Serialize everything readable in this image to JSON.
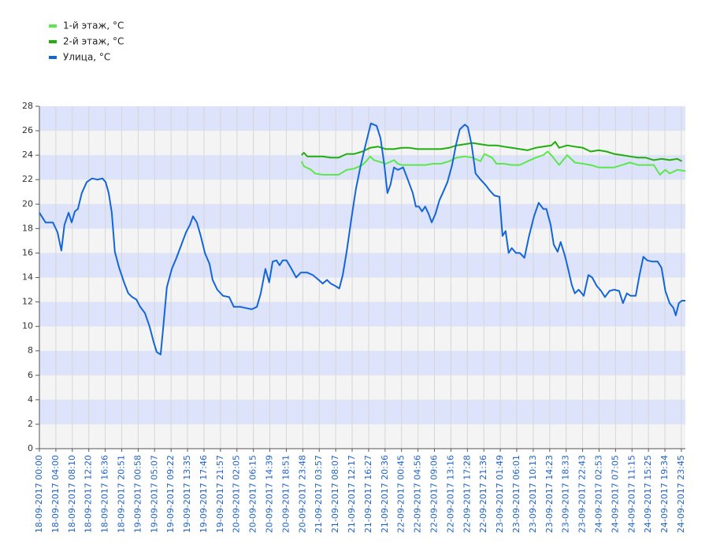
{
  "chart_data": {
    "type": "line",
    "legend": "top-left",
    "grid": true,
    "band_colors": [
      "#f4f4f4",
      "#dce3fa"
    ],
    "xlim": [
      0,
      167.8
    ],
    "ylim": [
      0,
      28
    ],
    "yticks": [
      0,
      2,
      4,
      6,
      8,
      10,
      12,
      14,
      16,
      18,
      20,
      22,
      24,
      26,
      28
    ],
    "xticks": [
      {
        "value": 0,
        "label": "18-09-2017 00:00"
      },
      {
        "value": 4.28,
        "label": "18-09-2017 04:00"
      },
      {
        "value": 8.55,
        "label": "18-09-2017 08:10"
      },
      {
        "value": 12.83,
        "label": "18-09-2017 12:20"
      },
      {
        "value": 17.1,
        "label": "18-09-2017 16:36"
      },
      {
        "value": 21.38,
        "label": "18-09-2017 20:51"
      },
      {
        "value": 25.66,
        "label": "19-09-2017 00:58"
      },
      {
        "value": 29.93,
        "label": "19-09-2017 05:07"
      },
      {
        "value": 34.21,
        "label": "19-09-2017 09:22"
      },
      {
        "value": 38.48,
        "label": "19-09-2017 13:35"
      },
      {
        "value": 42.76,
        "label": "19-09-2017 17:46"
      },
      {
        "value": 47.04,
        "label": "19-09-2017 21:57"
      },
      {
        "value": 51.31,
        "label": "20-09-2017 02:05"
      },
      {
        "value": 55.59,
        "label": "20-09-2017 06:15"
      },
      {
        "value": 59.86,
        "label": "20-09-2017 14:39"
      },
      {
        "value": 64.14,
        "label": "20-09-2017 18:51"
      },
      {
        "value": 68.42,
        "label": "20-09-2017 23:48"
      },
      {
        "value": 72.69,
        "label": "21-09-2017 03:57"
      },
      {
        "value": 76.97,
        "label": "21-09-2017 08:07"
      },
      {
        "value": 81.24,
        "label": "21-09-2017 12:17"
      },
      {
        "value": 85.52,
        "label": "21-09-2017 16:27"
      },
      {
        "value": 89.8,
        "label": "21-09-2017 20:36"
      },
      {
        "value": 94.07,
        "label": "22-09-2017 00:45"
      },
      {
        "value": 98.35,
        "label": "22-09-2017 04:56"
      },
      {
        "value": 102.62,
        "label": "22-09-2017 09:06"
      },
      {
        "value": 106.9,
        "label": "22-09-2017 13:16"
      },
      {
        "value": 111.18,
        "label": "22-09-2017 17:28"
      },
      {
        "value": 115.45,
        "label": "22-09-2017 21:36"
      },
      {
        "value": 119.73,
        "label": "23-09-2017 01:49"
      },
      {
        "value": 124.0,
        "label": "23-09-2017 06:01"
      },
      {
        "value": 128.28,
        "label": "23-09-2017 10:13"
      },
      {
        "value": 132.56,
        "label": "23-09-2017 14:23"
      },
      {
        "value": 136.83,
        "label": "23-09-2017 18:33"
      },
      {
        "value": 141.11,
        "label": "23-09-2017 22:43"
      },
      {
        "value": 145.38,
        "label": "24-09-2017 02:53"
      },
      {
        "value": 149.66,
        "label": "24-09-2017 07:05"
      },
      {
        "value": 153.94,
        "label": "24-09-2017 11:15"
      },
      {
        "value": 158.21,
        "label": "24-09-2017 15:25"
      },
      {
        "value": 162.49,
        "label": "24-09-2017 19:34"
      },
      {
        "value": 166.76,
        "label": "24-09-2017 23:45"
      }
    ],
    "series": [
      {
        "name": "1-й этаж, °C",
        "color": "#5be84a",
        "x": [
          68.1,
          68.7,
          70.6,
          71.6,
          73.6,
          75.7,
          77.7,
          78.8,
          79.8,
          81.8,
          83.9,
          84.9,
          85.9,
          86.9,
          88.0,
          90.0,
          92.1,
          93.1,
          94.1,
          96.2,
          98.2,
          100.2,
          102.3,
          104.3,
          106.4,
          108.4,
          110.5,
          112.5,
          114.6,
          115.6,
          117.6,
          118.7,
          120.7,
          122.7,
          124.8,
          126.8,
          128.9,
          130.9,
          132.0,
          133.0,
          135.0,
          137.1,
          139.1,
          141.2,
          143.2,
          145.3,
          147.3,
          149.3,
          151.4,
          153.4,
          155.5,
          157.5,
          159.6,
          161.2,
          162.6,
          163.7,
          165.7,
          167.8
        ],
        "values": [
          23.5,
          23.1,
          22.8,
          22.5,
          22.4,
          22.4,
          22.4,
          22.6,
          22.8,
          22.9,
          23.2,
          23.5,
          23.9,
          23.6,
          23.5,
          23.3,
          23.6,
          23.3,
          23.2,
          23.2,
          23.2,
          23.2,
          23.3,
          23.3,
          23.5,
          23.8,
          23.9,
          23.8,
          23.5,
          24.1,
          23.8,
          23.3,
          23.3,
          23.2,
          23.2,
          23.5,
          23.8,
          24.0,
          24.3,
          24.0,
          23.2,
          24.0,
          23.4,
          23.3,
          23.2,
          23.0,
          23.0,
          23.0,
          23.2,
          23.4,
          23.2,
          23.2,
          23.2,
          22.4,
          22.8,
          22.5,
          22.8,
          22.7
        ]
      },
      {
        "name": "2-й этаж, °C",
        "color": "#1fae0c",
        "x": [
          68.1,
          68.7,
          69.6,
          71.6,
          73.6,
          75.7,
          77.7,
          79.8,
          81.8,
          83.9,
          85.9,
          88.0,
          90.0,
          92.1,
          94.1,
          96.2,
          98.2,
          100.2,
          102.3,
          104.3,
          106.4,
          108.4,
          110.5,
          112.5,
          114.6,
          116.6,
          118.7,
          120.7,
          122.7,
          124.8,
          126.8,
          128.9,
          130.9,
          133.0,
          134.0,
          135.0,
          137.1,
          139.1,
          141.2,
          143.2,
          145.3,
          147.3,
          149.3,
          151.4,
          153.4,
          155.5,
          157.5,
          159.6,
          161.6,
          163.7,
          165.7,
          166.9
        ],
        "values": [
          24.0,
          24.2,
          23.9,
          23.9,
          23.9,
          23.8,
          23.8,
          24.1,
          24.1,
          24.3,
          24.6,
          24.7,
          24.5,
          24.5,
          24.6,
          24.6,
          24.5,
          24.5,
          24.5,
          24.5,
          24.6,
          24.8,
          24.9,
          25.0,
          24.9,
          24.8,
          24.8,
          24.7,
          24.6,
          24.5,
          24.4,
          24.6,
          24.7,
          24.8,
          25.1,
          24.6,
          24.8,
          24.7,
          24.6,
          24.3,
          24.4,
          24.3,
          24.1,
          24.0,
          23.9,
          23.8,
          23.8,
          23.6,
          23.7,
          23.6,
          23.7,
          23.5
        ]
      },
      {
        "name": "Улица, °C",
        "color": "#1466d8",
        "x": [
          0,
          1.6,
          3.5,
          4.7,
          5.7,
          6.5,
          7.6,
          8.4,
          9.2,
          10.0,
          11.0,
          12.3,
          13.7,
          15.1,
          16.4,
          17.2,
          18.0,
          18.8,
          19.6,
          20.7,
          22.1,
          23.1,
          24.1,
          25.2,
          26.2,
          27.4,
          28.6,
          29.7,
          30.5,
          31.5,
          32.1,
          33.1,
          34.4,
          35.6,
          36.8,
          38.1,
          39.1,
          39.9,
          40.9,
          41.9,
          43.0,
          44.2,
          45.0,
          46.2,
          47.7,
          49.3,
          50.5,
          52.2,
          53.6,
          55.2,
          56.5,
          57.5,
          58.7,
          59.7,
          60.6,
          61.6,
          62.4,
          63.2,
          64.2,
          65.5,
          66.7,
          67.9,
          69.6,
          71.0,
          72.2,
          73.6,
          74.7,
          75.7,
          76.9,
          77.9,
          78.8,
          79.8,
          81.0,
          82.2,
          83.5,
          84.7,
          86.1,
          87.6,
          88.6,
          89.6,
          90.4,
          91.2,
          92.1,
          93.1,
          94.5,
          95.7,
          97.0,
          97.8,
          98.6,
          99.4,
          100.2,
          101.1,
          101.9,
          102.9,
          103.9,
          104.9,
          106.0,
          107.2,
          108.2,
          109.2,
          110.5,
          111.3,
          112.3,
          113.3,
          114.6,
          115.8,
          117.0,
          118.2,
          119.5,
          120.3,
          121.1,
          121.9,
          122.7,
          123.8,
          124.8,
          126.0,
          127.2,
          128.5,
          129.7,
          130.9,
          131.7,
          132.8,
          133.6,
          134.6,
          135.4,
          136.5,
          137.5,
          138.3,
          139.1,
          140.1,
          141.4,
          142.6,
          143.6,
          144.8,
          145.9,
          146.9,
          148.1,
          149.3,
          150.6,
          151.6,
          152.6,
          153.6,
          154.9,
          155.9,
          156.9,
          157.9,
          159.2,
          160.6,
          161.6,
          162.6,
          163.7,
          164.7,
          165.3,
          166.1,
          166.9,
          167.8
        ],
        "values": [
          19.3,
          18.5,
          18.5,
          17.7,
          16.2,
          18.3,
          19.3,
          18.5,
          19.4,
          19.6,
          20.9,
          21.8,
          22.1,
          22.0,
          22.1,
          21.8,
          20.9,
          19.3,
          16.1,
          14.8,
          13.5,
          12.7,
          12.4,
          12.2,
          11.6,
          11.1,
          10.0,
          8.7,
          7.9,
          7.7,
          9.7,
          13.2,
          14.7,
          15.6,
          16.6,
          17.7,
          18.3,
          19.0,
          18.5,
          17.4,
          16.0,
          15.1,
          13.8,
          13.0,
          12.5,
          12.4,
          11.6,
          11.6,
          11.5,
          11.4,
          11.6,
          12.7,
          14.7,
          13.6,
          15.3,
          15.4,
          15.0,
          15.4,
          15.4,
          14.7,
          14.0,
          14.4,
          14.4,
          14.2,
          13.9,
          13.5,
          13.8,
          13.5,
          13.3,
          13.1,
          14.2,
          16.1,
          18.7,
          21.2,
          23.2,
          24.8,
          26.6,
          26.4,
          25.4,
          23.2,
          20.9,
          21.6,
          23.0,
          22.8,
          23.0,
          22.0,
          20.9,
          19.8,
          19.8,
          19.4,
          19.8,
          19.2,
          18.5,
          19.2,
          20.3,
          21.0,
          21.8,
          23.2,
          24.8,
          26.1,
          26.5,
          26.3,
          24.8,
          22.5,
          22.0,
          21.6,
          21.1,
          20.7,
          20.6,
          17.4,
          17.8,
          16.0,
          16.4,
          16.0,
          16.0,
          15.6,
          17.4,
          19.0,
          20.1,
          19.6,
          19.6,
          18.3,
          16.7,
          16.1,
          16.9,
          15.8,
          14.5,
          13.4,
          12.7,
          13.0,
          12.5,
          14.2,
          14.0,
          13.3,
          12.9,
          12.4,
          12.9,
          13.0,
          12.9,
          11.9,
          12.7,
          12.5,
          12.5,
          14.2,
          15.7,
          15.4,
          15.3,
          15.3,
          14.8,
          12.9,
          11.9,
          11.5,
          10.9,
          11.9,
          12.1,
          12.1
        ]
      }
    ]
  }
}
